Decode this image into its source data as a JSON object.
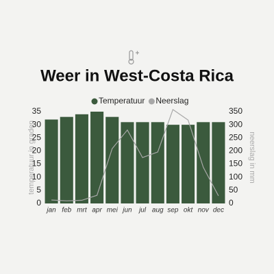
{
  "chart_data": {
    "type": "bar",
    "title": "Weer in West-Costa Rica",
    "categories": [
      "jan",
      "feb",
      "mrt",
      "apr",
      "mei",
      "jun",
      "jul",
      "aug",
      "sep",
      "okt",
      "nov",
      "dec"
    ],
    "series": [
      {
        "name": "Temperatuur",
        "type": "bar",
        "color": "#3b5a3d",
        "values": [
          32,
          33,
          34,
          35,
          33,
          31,
          31,
          31,
          30,
          30,
          31,
          31
        ]
      },
      {
        "name": "Neerslag",
        "type": "line",
        "axis": "y2",
        "color": "#a8a8a8",
        "values": [
          13,
          10,
          12,
          31,
          209,
          280,
          175,
          196,
          358,
          318,
          138,
          29
        ]
      }
    ],
    "ylabel": "temperatuur in graden",
    "y2label": "neerslag in mm",
    "ylim": [
      0,
      35
    ],
    "yticks": [
      0,
      5,
      10,
      15,
      20,
      25,
      30,
      35
    ],
    "y2lim": [
      0,
      350
    ],
    "y2ticks": [
      0,
      50,
      100,
      150,
      200,
      250,
      300,
      350
    ]
  }
}
